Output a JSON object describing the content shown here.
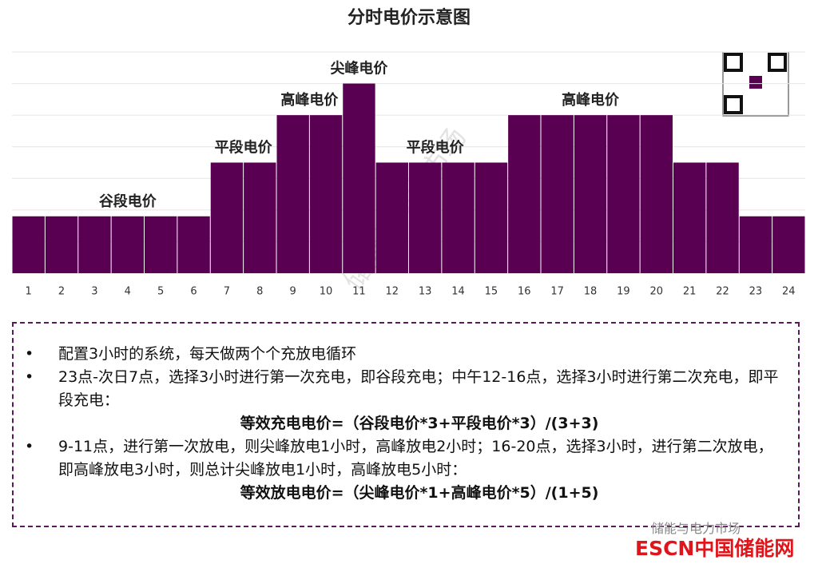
{
  "chart_data": {
    "type": "bar",
    "title": "分时电价示意图",
    "categories": [
      "1",
      "2",
      "3",
      "4",
      "5",
      "6",
      "7",
      "8",
      "9",
      "10",
      "11",
      "12",
      "13",
      "14",
      "15",
      "16",
      "17",
      "18",
      "19",
      "20",
      "21",
      "22",
      "23",
      "24"
    ],
    "values": [
      1.8,
      1.8,
      1.8,
      1.8,
      1.8,
      1.8,
      3.5,
      3.5,
      5,
      5,
      6,
      3.5,
      3.5,
      3.5,
      3.5,
      5,
      5,
      5,
      5,
      5,
      3.5,
      3.5,
      1.8,
      1.8
    ],
    "color": "#5a0052",
    "ylim": [
      0,
      7
    ],
    "annotations": [
      "谷段电价",
      "平段电价",
      "高峰电价",
      "尖峰电价",
      "平段电价",
      "高峰电价"
    ]
  },
  "notes": {
    "bullets": [
      "配置3小时的系统，每天做两个个充放电循环",
      "23点-次日7点，选择3小时进行第一次充电，即谷段充电；中午12-16点，选择3小时进行第二次充电，即平段充电：",
      "9-11点，进行第一次放电，则尖峰放电1小时，高峰放电2小时；16-20点，选择3小时，进行第二次放电，即高峰放电3小时，则总计尖峰放电1小时，高峰放电5小时："
    ],
    "formulas": [
      "等效充电电价=（谷段电价*3+平段电价*3）/(3+3)",
      "等效放电电价=（尖峰电价*1+高峰电价*5）/(1+5)"
    ]
  },
  "watermark": "储能与电力市场",
  "footer": "ESCN中国储能网"
}
